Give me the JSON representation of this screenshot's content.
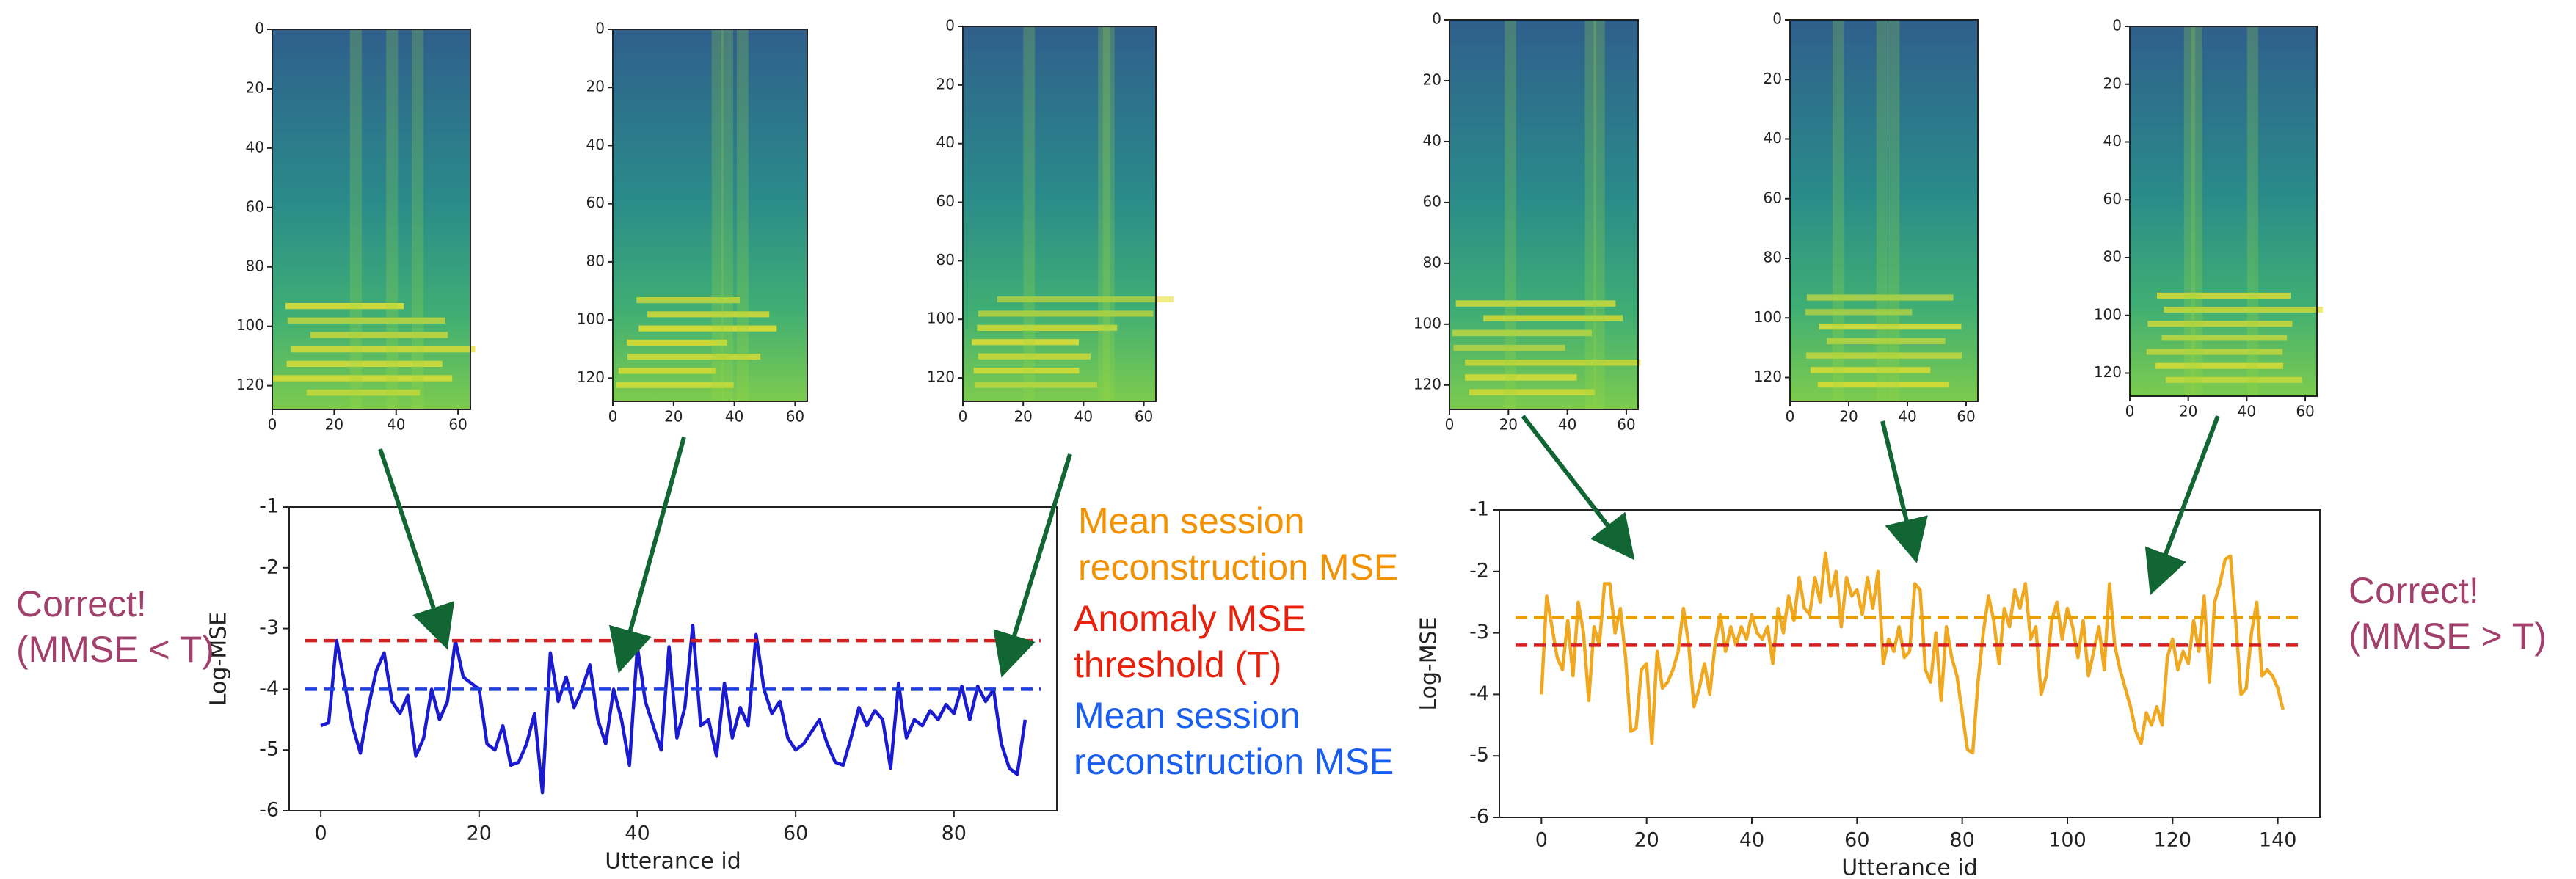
{
  "chart_data": [
    {
      "type": "line",
      "xlabel": "Utterance id",
      "ylabel": "Log-MSE",
      "xlim": [
        -4,
        93
      ],
      "ylim": [
        -6,
        -1
      ],
      "xticks": [
        0,
        20,
        40,
        60,
        80
      ],
      "yticks": [
        -6,
        -5,
        -4,
        -3,
        -2,
        -1
      ],
      "series": [
        {
          "color": "#1a1ad0",
          "values": [
            -4.6,
            -4.55,
            -3.2,
            -3.9,
            -4.6,
            -5.05,
            -4.3,
            -3.7,
            -3.4,
            -4.2,
            -4.4,
            -4.1,
            -5.1,
            -4.8,
            -4.0,
            -4.5,
            -4.2,
            -3.2,
            -3.8,
            -3.9,
            -4.0,
            -4.9,
            -5.0,
            -4.6,
            -5.25,
            -5.2,
            -4.9,
            -4.4,
            -5.7,
            -3.4,
            -4.2,
            -3.8,
            -4.3,
            -4.0,
            -3.6,
            -4.5,
            -4.9,
            -4.0,
            -4.5,
            -5.25,
            -3.3,
            -4.2,
            -4.6,
            -5.0,
            -3.3,
            -4.8,
            -4.3,
            -2.95,
            -4.6,
            -4.5,
            -5.1,
            -3.9,
            -4.8,
            -4.3,
            -4.6,
            -3.1,
            -4.0,
            -4.4,
            -4.2,
            -4.8,
            -5.0,
            -4.9,
            -4.7,
            -4.5,
            -4.9,
            -5.2,
            -5.25,
            -4.8,
            -4.3,
            -4.6,
            -4.35,
            -4.5,
            -5.3,
            -3.9,
            -4.8,
            -4.5,
            -4.6,
            -4.35,
            -4.5,
            -4.25,
            -4.4,
            -3.95,
            -4.5,
            -3.95,
            -4.2,
            -4.0,
            -4.9,
            -5.3,
            -5.4,
            -4.5
          ]
        }
      ],
      "hlines": [
        {
          "value": -3.2,
          "color": "#d62020"
        },
        {
          "value": -4.0,
          "color": "#1f3fe0"
        }
      ]
    },
    {
      "type": "line",
      "xlabel": "Utterance id",
      "ylabel": "Log-MSE",
      "xlim": [
        -8,
        148
      ],
      "ylim": [
        -6,
        -1
      ],
      "xticks": [
        0,
        20,
        40,
        60,
        80,
        100,
        120,
        140
      ],
      "yticks": [
        -6,
        -5,
        -4,
        -3,
        -2,
        -1
      ],
      "series": [
        {
          "color": "#f0a820",
          "values": [
            -4.0,
            -2.4,
            -2.9,
            -3.4,
            -3.6,
            -2.8,
            -3.7,
            -2.5,
            -3.0,
            -4.1,
            -2.9,
            -3.2,
            -2.2,
            -2.2,
            -3.0,
            -2.6,
            -3.4,
            -4.6,
            -4.55,
            -3.6,
            -3.5,
            -4.8,
            -3.3,
            -3.9,
            -3.8,
            -3.6,
            -3.3,
            -2.6,
            -3.2,
            -4.2,
            -3.9,
            -3.5,
            -4.0,
            -3.2,
            -2.7,
            -3.3,
            -2.9,
            -3.2,
            -2.9,
            -3.1,
            -2.7,
            -3.0,
            -3.1,
            -2.9,
            -3.5,
            -2.6,
            -3.0,
            -2.4,
            -2.8,
            -2.1,
            -2.6,
            -2.7,
            -2.1,
            -2.5,
            -1.7,
            -2.4,
            -2.0,
            -2.9,
            -2.1,
            -2.4,
            -2.3,
            -2.7,
            -2.1,
            -2.6,
            -2.0,
            -3.5,
            -3.1,
            -3.3,
            -2.9,
            -3.4,
            -3.3,
            -2.2,
            -2.3,
            -3.6,
            -3.8,
            -3.0,
            -4.1,
            -2.9,
            -3.4,
            -3.7,
            -4.3,
            -4.9,
            -4.95,
            -3.8,
            -3.0,
            -2.4,
            -2.8,
            -3.5,
            -2.6,
            -2.9,
            -2.3,
            -2.6,
            -2.2,
            -3.1,
            -2.9,
            -4.0,
            -3.7,
            -2.8,
            -2.5,
            -3.1,
            -2.6,
            -2.9,
            -3.4,
            -2.8,
            -3.7,
            -3.3,
            -2.9,
            -3.6,
            -2.2,
            -3.2,
            -3.6,
            -3.9,
            -4.2,
            -4.6,
            -4.8,
            -4.3,
            -4.5,
            -4.2,
            -4.5,
            -3.4,
            -3.1,
            -3.6,
            -3.3,
            -3.5,
            -2.8,
            -3.3,
            -2.4,
            -3.8,
            -2.5,
            -2.2,
            -1.8,
            -1.75,
            -2.8,
            -4.0,
            -3.9,
            -3.0,
            -2.5,
            -3.7,
            -3.6,
            -3.7,
            -3.9,
            -4.25
          ]
        }
      ],
      "hlines": [
        {
          "value": -2.75,
          "color": "#e8a000"
        },
        {
          "value": -3.2,
          "color": "#d62020"
        }
      ]
    }
  ],
  "spectrogram_axes": {
    "xlim": [
      0,
      64
    ],
    "ylim": [
      128,
      0
    ],
    "xticks": [
      0,
      20,
      40,
      60
    ],
    "yticks": [
      0,
      20,
      40,
      60,
      80,
      100,
      120
    ]
  },
  "notes": [
    {
      "lines": [
        "Mean session",
        "reconstruction MSE"
      ],
      "color": "#f39200"
    },
    {
      "lines": [
        "Anomaly MSE",
        "threshold (T)"
      ],
      "color": "#e8200c"
    },
    {
      "lines": [
        "Mean session",
        "reconstruction MSE"
      ],
      "color": "#1a5ef0"
    }
  ],
  "verdicts": [
    {
      "lines": [
        "Correct!",
        "(MMSE < T)"
      ],
      "color": "#a2406c"
    },
    {
      "lines": [
        "Correct!",
        "(MMSE > T)"
      ],
      "color": "#a2406c"
    }
  ]
}
